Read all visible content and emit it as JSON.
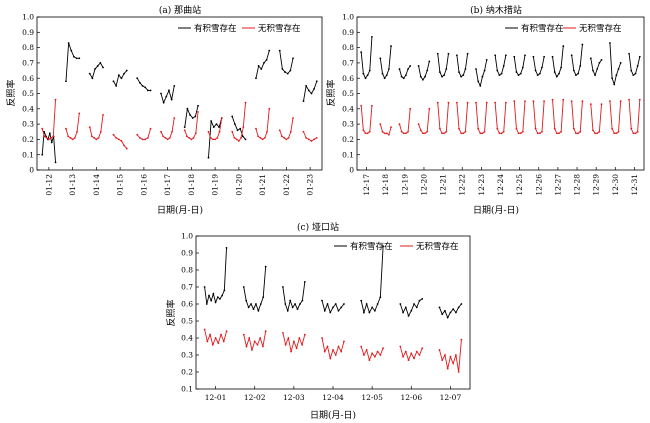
{
  "chart_data": [
    {
      "type": "line",
      "title": "(a) 那曲站",
      "xlabel": "日期(月-日)",
      "ylabel": "反照率",
      "ylim": [
        0,
        1.0
      ],
      "yticks": [
        "0",
        "0.1",
        "0.2",
        "0.3",
        "0.4",
        "0.5",
        "0.6",
        "0.7",
        "0.8",
        "0.9",
        "1.0"
      ],
      "categories": [
        "01-12",
        "01-13",
        "01-14",
        "01-15",
        "01-16",
        "01-17",
        "01-18",
        "01-19",
        "01-20",
        "01-21",
        "01-22",
        "01-23"
      ],
      "legend_position": "top-right",
      "series": [
        {
          "name": "有积雪存在",
          "color": "#000000",
          "days": [
            [
              0.1,
              0.25,
              0.22,
              0.2,
              0.24,
              0.18,
              0.22,
              0.05
            ],
            [
              0.58,
              0.83,
              0.78,
              0.74,
              0.73,
              0.73
            ],
            [
              0.63,
              0.6,
              0.66,
              0.68,
              0.7,
              0.67
            ],
            [
              0.58,
              0.55,
              0.62,
              0.6,
              0.63,
              0.65
            ],
            [
              0.6,
              0.57,
              0.55,
              0.54,
              0.52,
              0.52
            ],
            [
              0.5,
              0.44,
              0.48,
              0.52,
              0.46,
              0.55
            ],
            [
              0.28,
              0.4,
              0.36,
              0.34,
              0.35,
              0.42
            ],
            [
              0.08,
              0.32,
              0.28,
              0.3,
              0.28,
              0.34
            ],
            [
              0.35,
              0.3,
              0.26,
              0.27,
              0.22,
              0.2
            ],
            [
              0.6,
              0.68,
              0.66,
              0.7,
              0.72,
              0.78
            ],
            [
              0.78,
              0.66,
              0.64,
              0.63,
              0.65,
              0.73
            ],
            [
              0.45,
              0.55,
              0.52,
              0.5,
              0.53,
              0.58
            ]
          ]
        },
        {
          "name": "无积雪存在",
          "color": "#e41a1c",
          "days": [
            [
              0.27,
              0.22,
              0.21,
              0.2,
              0.21,
              0.22,
              0.46
            ],
            [
              0.27,
              0.22,
              0.21,
              0.2,
              0.21,
              0.25,
              0.37
            ],
            [
              0.28,
              0.22,
              0.21,
              0.2,
              0.21,
              0.25,
              0.36
            ],
            [
              0.23,
              0.21,
              0.2,
              0.19,
              0.16,
              0.14
            ],
            [
              0.23,
              0.21,
              0.2,
              0.2,
              0.21,
              0.27
            ],
            [
              0.25,
              0.22,
              0.21,
              0.2,
              0.21,
              0.25,
              0.34
            ],
            [
              0.26,
              0.22,
              0.21,
              0.2,
              0.21,
              0.24,
              0.38
            ],
            [
              0.25,
              0.21,
              0.2,
              0.2,
              0.21,
              0.25,
              0.34
            ],
            [
              0.25,
              0.21,
              0.2,
              0.19,
              0.21,
              0.28,
              0.44
            ],
            [
              0.27,
              0.22,
              0.21,
              0.2,
              0.21,
              0.25,
              0.4
            ],
            [
              0.26,
              0.22,
              0.21,
              0.2,
              0.21,
              0.25,
              0.34
            ],
            [
              0.25,
              0.21,
              0.2,
              0.19,
              0.2,
              0.21
            ]
          ]
        }
      ]
    },
    {
      "type": "line",
      "title": "(b) 纳木措站",
      "xlabel": "日期(月-日)",
      "ylabel": "反照率",
      "ylim": [
        0,
        1.0
      ],
      "yticks": [
        "0",
        "0.1",
        "0.2",
        "0.3",
        "0.4",
        "0.5",
        "0.6",
        "0.7",
        "0.8",
        "0.9",
        "1.0"
      ],
      "categories": [
        "12-17",
        "12-18",
        "12-19",
        "12-20",
        "12-21",
        "12-22",
        "12-23",
        "12-24",
        "12-25",
        "12-26",
        "12-27",
        "12-28",
        "12-29",
        "12-30",
        "12-31"
      ],
      "legend_position": "top-right",
      "series": [
        {
          "name": "有积雪存在",
          "color": "#000000",
          "days": [
            [
              0.77,
              0.63,
              0.6,
              0.62,
              0.65,
              0.87
            ],
            [
              0.73,
              0.63,
              0.6,
              0.62,
              0.66,
              0.81
            ],
            [
              0.66,
              0.61,
              0.6,
              0.62,
              0.66,
              0.68
            ],
            [
              0.68,
              0.61,
              0.59,
              0.61,
              0.65,
              0.71
            ],
            [
              0.76,
              0.64,
              0.61,
              0.62,
              0.66,
              0.76
            ],
            [
              0.75,
              0.64,
              0.61,
              0.62,
              0.66,
              0.76
            ],
            [
              0.66,
              0.58,
              0.55,
              0.61,
              0.65,
              0.72
            ],
            [
              0.75,
              0.65,
              0.62,
              0.63,
              0.68,
              0.75
            ],
            [
              0.74,
              0.64,
              0.62,
              0.63,
              0.67,
              0.75
            ],
            [
              0.74,
              0.65,
              0.62,
              0.63,
              0.67,
              0.74
            ],
            [
              0.74,
              0.64,
              0.61,
              0.63,
              0.67,
              0.81
            ],
            [
              0.75,
              0.65,
              0.62,
              0.63,
              0.68,
              0.82
            ],
            [
              0.73,
              0.65,
              0.62,
              0.66,
              0.7,
              0.72
            ],
            [
              0.83,
              0.6,
              0.56,
              0.62,
              0.66,
              0.7
            ],
            [
              0.76,
              0.65,
              0.62,
              0.63,
              0.68,
              0.74
            ]
          ]
        },
        {
          "name": "无积雪存在",
          "color": "#e41a1c",
          "days": [
            [
              0.42,
              0.26,
              0.24,
              0.24,
              0.25,
              0.42
            ],
            [
              0.3,
              0.25,
              0.24,
              0.24,
              0.23,
              0.28
            ],
            [
              0.3,
              0.25,
              0.24,
              0.24,
              0.25,
              0.4
            ],
            [
              0.3,
              0.26,
              0.24,
              0.24,
              0.25,
              0.4
            ],
            [
              0.44,
              0.27,
              0.24,
              0.24,
              0.25,
              0.44
            ],
            [
              0.44,
              0.27,
              0.24,
              0.24,
              0.25,
              0.44
            ],
            [
              0.44,
              0.27,
              0.24,
              0.24,
              0.25,
              0.44
            ],
            [
              0.44,
              0.27,
              0.24,
              0.24,
              0.25,
              0.44
            ],
            [
              0.45,
              0.27,
              0.24,
              0.24,
              0.25,
              0.45
            ],
            [
              0.45,
              0.27,
              0.24,
              0.24,
              0.25,
              0.45
            ],
            [
              0.46,
              0.27,
              0.24,
              0.24,
              0.25,
              0.46
            ],
            [
              0.45,
              0.27,
              0.24,
              0.24,
              0.25,
              0.45
            ],
            [
              0.43,
              0.26,
              0.24,
              0.24,
              0.25,
              0.43
            ],
            [
              0.45,
              0.27,
              0.24,
              0.24,
              0.25,
              0.45
            ],
            [
              0.46,
              0.27,
              0.24,
              0.24,
              0.25,
              0.46
            ]
          ]
        }
      ]
    },
    {
      "type": "line",
      "title": "(c) 垭口站",
      "xlabel": "日期(月-日)",
      "ylabel": "反照率",
      "ylim": [
        0.1,
        1.0
      ],
      "yticks": [
        "0.1",
        "0.2",
        "0.3",
        "0.4",
        "0.5",
        "0.6",
        "0.7",
        "0.8",
        "0.9",
        "1.0"
      ],
      "categories": [
        "12-01",
        "12-02",
        "12-03",
        "12-04",
        "12-05",
        "12-06",
        "12-07"
      ],
      "legend_position": "top-right",
      "series": [
        {
          "name": "有积雪存在",
          "color": "#000000",
          "days": [
            [
              0.7,
              0.6,
              0.65,
              0.62,
              0.66,
              0.61,
              0.64,
              0.63,
              0.65,
              0.68,
              0.93
            ],
            [
              0.7,
              0.62,
              0.58,
              0.6,
              0.57,
              0.6,
              0.56,
              0.6,
              0.64,
              0.82
            ],
            [
              0.7,
              0.6,
              0.56,
              0.62,
              0.58,
              0.6,
              0.57,
              0.6,
              0.62,
              0.73
            ],
            [
              0.62,
              0.56,
              0.6,
              0.55,
              0.58,
              0.6,
              0.56,
              0.58,
              0.6
            ],
            [
              0.62,
              0.55,
              0.6,
              0.55,
              0.58,
              0.56,
              0.6,
              0.64,
              0.94
            ],
            [
              0.6,
              0.55,
              0.58,
              0.53,
              0.56,
              0.6,
              0.58,
              0.62,
              0.63
            ],
            [
              0.58,
              0.54,
              0.56,
              0.52,
              0.55,
              0.57,
              0.55,
              0.58,
              0.6
            ]
          ]
        },
        {
          "name": "无积雪存在",
          "color": "#e41a1c",
          "days": [
            [
              0.45,
              0.38,
              0.42,
              0.36,
              0.4,
              0.37,
              0.42,
              0.38,
              0.44
            ],
            [
              0.42,
              0.35,
              0.4,
              0.33,
              0.38,
              0.36,
              0.4,
              0.35,
              0.44
            ],
            [
              0.43,
              0.36,
              0.4,
              0.32,
              0.38,
              0.34,
              0.4,
              0.36,
              0.42
            ],
            [
              0.4,
              0.32,
              0.35,
              0.28,
              0.33,
              0.3,
              0.35,
              0.32,
              0.38
            ],
            [
              0.35,
              0.3,
              0.33,
              0.27,
              0.31,
              0.29,
              0.32,
              0.3,
              0.34
            ],
            [
              0.35,
              0.29,
              0.32,
              0.27,
              0.31,
              0.28,
              0.32,
              0.3,
              0.34
            ],
            [
              0.33,
              0.27,
              0.3,
              0.22,
              0.29,
              0.25,
              0.3,
              0.2,
              0.39
            ]
          ]
        }
      ]
    }
  ]
}
